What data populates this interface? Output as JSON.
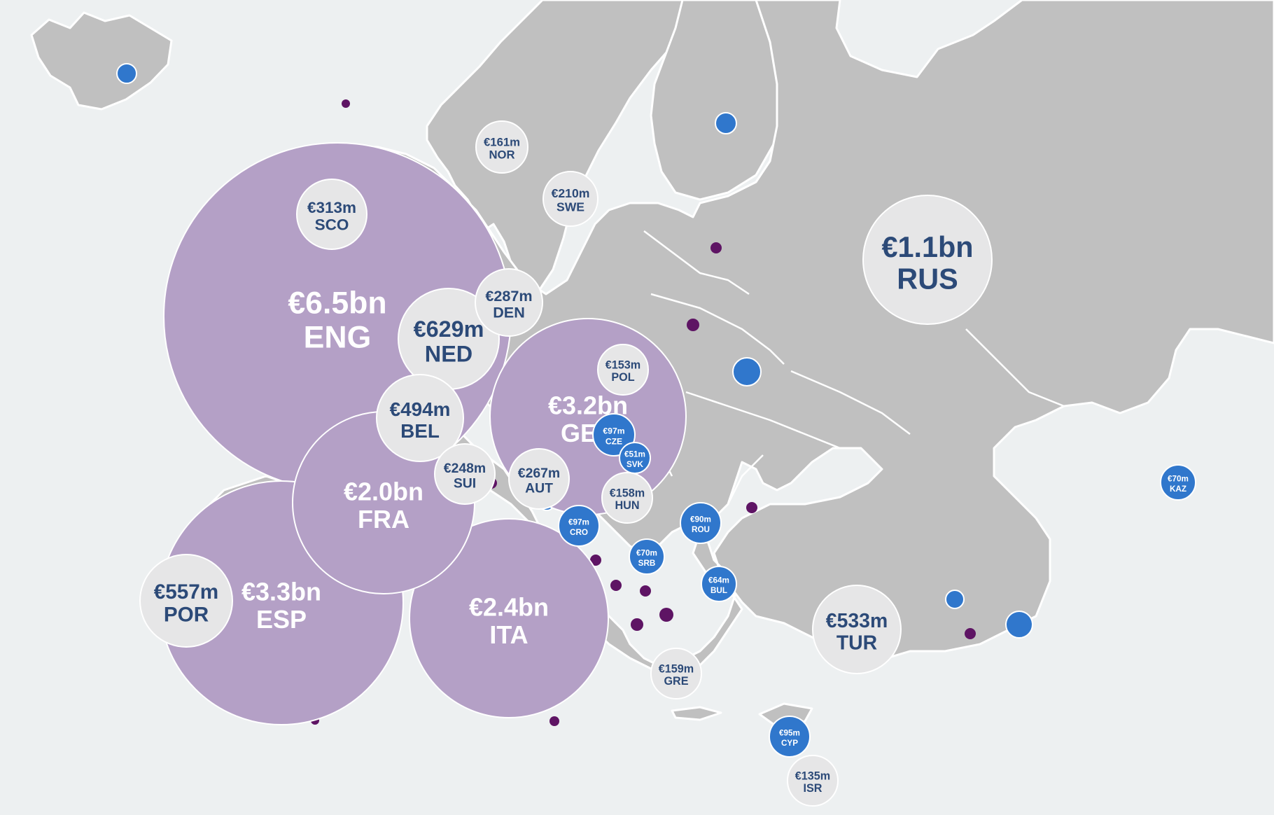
{
  "map": {
    "colors": {
      "sea": "#edf0f1",
      "land": "#c0c0c0",
      "large_bubble": "#b4a0c6",
      "medium_bubble": "#e6e6e7",
      "small_bubble": "#3077cc",
      "dot": "#5e1464",
      "big_text": "#ffffff",
      "grey_text": "#2c4a78"
    },
    "bubbles": [
      {
        "code": "ENG",
        "value": "€6.5bn",
        "tier": "large"
      },
      {
        "code": "ESP",
        "value": "€3.3bn",
        "tier": "large"
      },
      {
        "code": "GER",
        "value": "€3.2bn",
        "tier": "large"
      },
      {
        "code": "ITA",
        "value": "€2.4bn",
        "tier": "large"
      },
      {
        "code": "FRA",
        "value": "€2.0bn",
        "tier": "large"
      },
      {
        "code": "RUS",
        "value": "€1.1bn",
        "tier": "medium"
      },
      {
        "code": "NED",
        "value": "€629m",
        "tier": "medium"
      },
      {
        "code": "POR",
        "value": "€557m",
        "tier": "medium"
      },
      {
        "code": "TUR",
        "value": "€533m",
        "tier": "medium"
      },
      {
        "code": "BEL",
        "value": "€494m",
        "tier": "medium"
      },
      {
        "code": "SCO",
        "value": "€313m",
        "tier": "medium"
      },
      {
        "code": "DEN",
        "value": "€287m",
        "tier": "medium"
      },
      {
        "code": "AUT",
        "value": "€267m",
        "tier": "medium"
      },
      {
        "code": "SUI",
        "value": "€248m",
        "tier": "medium"
      },
      {
        "code": "SWE",
        "value": "€210m",
        "tier": "medium"
      },
      {
        "code": "NOR",
        "value": "€161m",
        "tier": "medium"
      },
      {
        "code": "GRE",
        "value": "€159m",
        "tier": "medium"
      },
      {
        "code": "HUN",
        "value": "€158m",
        "tier": "medium"
      },
      {
        "code": "POL",
        "value": "€153m",
        "tier": "medium"
      },
      {
        "code": "ISR",
        "value": "€135m",
        "tier": "medium"
      },
      {
        "code": "CZE",
        "value": "€97m",
        "tier": "small"
      },
      {
        "code": "CRO",
        "value": "€97m",
        "tier": "small"
      },
      {
        "code": "CYP",
        "value": "€95m",
        "tier": "small"
      },
      {
        "code": "ROU",
        "value": "€90m",
        "tier": "small"
      },
      {
        "code": "SRB",
        "value": "€70m",
        "tier": "small"
      },
      {
        "code": "KAZ",
        "value": "€70m",
        "tier": "small"
      },
      {
        "code": "BUL",
        "value": "€64m",
        "tier": "small"
      },
      {
        "code": "SVK",
        "value": "€51m",
        "tier": "small"
      }
    ]
  }
}
